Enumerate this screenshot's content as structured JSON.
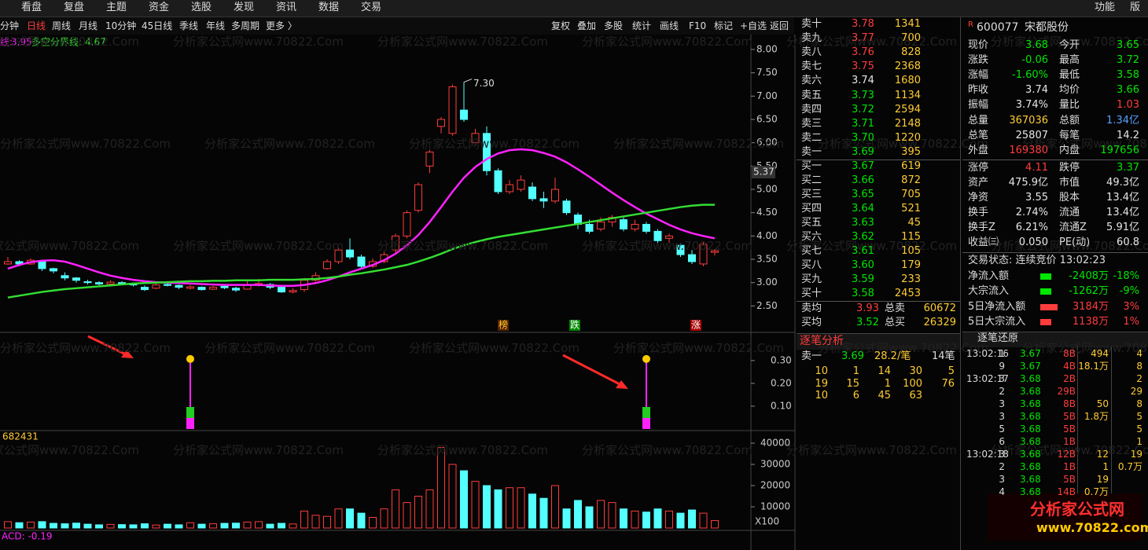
{
  "menu": [
    "看盘",
    "复盘",
    "主题",
    "资金",
    "选股",
    "发现",
    "资讯",
    "数据",
    "交易"
  ],
  "menu_right": [
    "功能",
    "版"
  ],
  "periods": [
    "分钟",
    "日线",
    "周线",
    "月线",
    "10分钟",
    "45日线",
    "季线",
    "年线",
    "多周期",
    "更多 〉"
  ],
  "tools": [
    "复权",
    "叠加",
    "多股",
    "统计",
    "画线",
    "F10",
    "标记",
    "+自选",
    "返回"
  ],
  "chart_data": {
    "type": "candlestick",
    "open": [
      3.4,
      3.45,
      3.4,
      3.45,
      3.3,
      3.15,
      3.1,
      3.02,
      3.0,
      2.97,
      3.0,
      2.97,
      2.9,
      2.88,
      2.96,
      2.94,
      2.88,
      2.9,
      2.86,
      2.92,
      2.88,
      2.86,
      2.95,
      2.96,
      2.9,
      2.8,
      2.85,
      3.05,
      3.3,
      3.45,
      3.7,
      3.55,
      3.35,
      3.45,
      3.7,
      4.0,
      4.55,
      5.5,
      6.35,
      6.2,
      6.7,
      6.0,
      6.2,
      5.4,
      4.95,
      5.0,
      5.05,
      4.8,
      4.75,
      4.75,
      4.45,
      4.25,
      4.15,
      4.3,
      4.35,
      4.15,
      4.25,
      4.1,
      3.95,
      3.8,
      3.6,
      3.4,
      3.65
    ],
    "close": [
      3.45,
      3.4,
      3.48,
      3.3,
      3.25,
      3.1,
      3.05,
      3.0,
      2.97,
      3.01,
      2.98,
      2.95,
      2.85,
      2.95,
      2.94,
      2.9,
      2.91,
      2.85,
      2.9,
      2.89,
      2.84,
      2.95,
      2.98,
      2.9,
      2.8,
      2.83,
      3.05,
      3.15,
      3.45,
      3.7,
      3.55,
      3.35,
      3.45,
      3.6,
      4.0,
      4.5,
      5.1,
      5.8,
      6.5,
      7.2,
      6.5,
      6.2,
      5.4,
      4.95,
      5.1,
      5.2,
      4.8,
      4.75,
      5.0,
      4.5,
      4.25,
      4.1,
      4.3,
      4.4,
      4.15,
      4.25,
      4.1,
      3.9,
      4.0,
      3.6,
      3.45,
      3.82,
      3.68
    ],
    "high": [
      3.55,
      3.48,
      3.52,
      3.46,
      3.32,
      3.22,
      3.12,
      3.06,
      3.03,
      3.05,
      3.03,
      3.0,
      2.94,
      2.98,
      3.0,
      2.96,
      2.95,
      2.92,
      2.93,
      2.96,
      2.91,
      3.05,
      3.08,
      2.99,
      2.92,
      2.88,
      3.1,
      3.22,
      3.5,
      3.75,
      3.95,
      3.6,
      3.52,
      3.66,
      4.05,
      4.55,
      5.15,
      5.85,
      6.55,
      7.25,
      7.3,
      6.3,
      6.35,
      5.45,
      5.2,
      5.3,
      5.15,
      4.95,
      5.25,
      4.8,
      4.5,
      4.35,
      4.4,
      4.45,
      4.4,
      4.35,
      4.3,
      4.15,
      4.05,
      3.85,
      3.7,
      3.88,
      3.72
    ],
    "low": [
      3.38,
      3.35,
      3.38,
      3.25,
      3.2,
      3.05,
      3.0,
      2.96,
      2.94,
      2.95,
      2.95,
      2.92,
      2.82,
      2.86,
      2.92,
      2.86,
      2.85,
      2.83,
      2.84,
      2.86,
      2.8,
      2.85,
      2.92,
      2.86,
      2.78,
      2.77,
      2.8,
      3.02,
      3.28,
      3.4,
      3.5,
      3.3,
      3.32,
      3.42,
      3.65,
      3.95,
      4.5,
      5.35,
      6.2,
      6.15,
      6.45,
      5.95,
      5.3,
      4.9,
      4.9,
      4.95,
      4.75,
      4.6,
      4.7,
      4.45,
      4.15,
      4.05,
      4.1,
      4.2,
      4.1,
      4.1,
      4.05,
      3.85,
      3.85,
      3.55,
      3.4,
      3.35,
      3.58
    ],
    "up_color": "#ff3c3c",
    "down_color": "#54ffff",
    "max_label": "7.30",
    "price_tag": "5.37",
    "series": [
      {
        "name": "线:",
        "color": "#ff22ff",
        "values": [
          3.3,
          3.38,
          3.44,
          3.47,
          3.48,
          3.45,
          3.38,
          3.3,
          3.22,
          3.15,
          3.1,
          3.06,
          3.03,
          3.01,
          3.0,
          2.99,
          2.98,
          2.97,
          2.96,
          2.95,
          2.95,
          2.95,
          2.95,
          2.94,
          2.93,
          2.93,
          2.95,
          2.99,
          3.05,
          3.13,
          3.22,
          3.3,
          3.38,
          3.48,
          3.62,
          3.8,
          4.02,
          4.3,
          4.62,
          4.95,
          5.25,
          5.48,
          5.65,
          5.77,
          5.84,
          5.86,
          5.84,
          5.78,
          5.7,
          5.58,
          5.43,
          5.27,
          5.1,
          4.93,
          4.77,
          4.62,
          4.48,
          4.36,
          4.24,
          4.14,
          4.06,
          4.0,
          3.95
        ]
      },
      {
        "name": "多空分界线:",
        "color": "#33dd33",
        "values": [
          2.68,
          2.72,
          2.76,
          2.8,
          2.83,
          2.86,
          2.88,
          2.9,
          2.92,
          2.94,
          2.96,
          2.98,
          2.99,
          3.0,
          3.01,
          3.02,
          3.03,
          3.03,
          3.04,
          3.04,
          3.05,
          3.05,
          3.05,
          3.06,
          3.06,
          3.06,
          3.07,
          3.08,
          3.1,
          3.13,
          3.17,
          3.2,
          3.24,
          3.28,
          3.33,
          3.38,
          3.45,
          3.53,
          3.62,
          3.72,
          3.8,
          3.87,
          3.93,
          3.98,
          4.02,
          4.06,
          4.1,
          4.14,
          4.18,
          4.22,
          4.26,
          4.3,
          4.34,
          4.38,
          4.42,
          4.46,
          4.5,
          4.54,
          4.58,
          4.62,
          4.65,
          4.67,
          4.67
        ]
      }
    ],
    "ylim": [
      1.95,
      8.32
    ],
    "yticks": [
      {
        "value": 2.5,
        "label": "2.50"
      },
      {
        "value": 3,
        "label": "3.00"
      },
      {
        "value": 3.5,
        "label": "3.50"
      },
      {
        "value": 4,
        "label": "4.00"
      },
      {
        "value": 4.5,
        "label": "4.50"
      },
      {
        "value": 5,
        "label": "5.00"
      },
      {
        "value": 5.5,
        "label": "5.50"
      },
      {
        "value": 6,
        "label": "6.00"
      },
      {
        "value": 6.5,
        "label": "6.50"
      },
      {
        "value": 7,
        "label": "7.00"
      },
      {
        "value": 7.5,
        "label": "7.50"
      },
      {
        "value": 8,
        "label": "8.00"
      }
    ],
    "markers": [
      "榜",
      "跌",
      "涨"
    ],
    "indicator": {
      "values": [
        null,
        null,
        null,
        null,
        null,
        null,
        null,
        null,
        null,
        null,
        null,
        null,
        null,
        null,
        null,
        null,
        0.3,
        null,
        null,
        null,
        null,
        null,
        null,
        null,
        null,
        null,
        null,
        null,
        null,
        null,
        null,
        null,
        null,
        null,
        null,
        null,
        null,
        null,
        null,
        null,
        null,
        null,
        null,
        null,
        null,
        null,
        null,
        null,
        null,
        null,
        null,
        null,
        null,
        null,
        null,
        null,
        0.3,
        null,
        null,
        null,
        null,
        null,
        null
      ],
      "ylim": [
        0,
        0.42
      ],
      "yticks": [
        {
          "value": 0.1,
          "label": "0.10"
        },
        {
          "value": 0.2,
          "label": "0.20"
        },
        {
          "value": 0.3,
          "label": "0.30"
        }
      ],
      "footer": "ACD: -0.19"
    },
    "volume": {
      "label": "682431",
      "unit": "X100",
      "values": [
        3000,
        2500,
        2800,
        3000,
        2200,
        2000,
        2300,
        1800,
        1500,
        1700,
        1600,
        1500,
        2000,
        1400,
        1800,
        1500,
        2500,
        1800,
        2000,
        2200,
        2300,
        2800,
        3000,
        1800,
        2200,
        1900,
        8000,
        6000,
        5500,
        9000,
        9000,
        7000,
        5000,
        9000,
        18000,
        12000,
        15000,
        18000,
        38000,
        30000,
        27000,
        22000,
        20000,
        18000,
        19000,
        19000,
        16000,
        14000,
        20000,
        9000,
        13000,
        10000,
        13000,
        12000,
        9000,
        8000,
        7500,
        9000,
        8000,
        7000,
        8500,
        7000,
        3500
      ],
      "ylim": [
        0,
        45200
      ],
      "yticks": [
        10000,
        20000,
        30000,
        40000
      ]
    }
  },
  "watermark": "分析家公式网www.70822.Com",
  "order_book": {
    "sell": [
      {
        "label": "卖十",
        "price": "3.78",
        "volume": "1341"
      },
      {
        "label": "卖九",
        "price": "3.77",
        "volume": "700"
      },
      {
        "label": "卖八",
        "price": "3.76",
        "volume": "828"
      },
      {
        "label": "卖七",
        "price": "3.75",
        "volume": "2368"
      },
      {
        "label": "卖六",
        "price": "3.74",
        "volume": "1680"
      },
      {
        "label": "卖五",
        "price": "3.73",
        "volume": "1134"
      },
      {
        "label": "卖四",
        "price": "3.72",
        "volume": "2594"
      },
      {
        "label": "卖三",
        "price": "3.71",
        "volume": "2148"
      },
      {
        "label": "卖二",
        "price": "3.70",
        "volume": "1220"
      },
      {
        "label": "卖一",
        "price": "3.69",
        "volume": "395"
      }
    ],
    "buy": [
      {
        "label": "买一",
        "price": "3.67",
        "volume": "619"
      },
      {
        "label": "买二",
        "price": "3.66",
        "volume": "872"
      },
      {
        "label": "买三",
        "price": "3.65",
        "volume": "705"
      },
      {
        "label": "买四",
        "price": "3.64",
        "volume": "521"
      },
      {
        "label": "买五",
        "price": "3.63",
        "volume": "45"
      },
      {
        "label": "买六",
        "price": "3.62",
        "volume": "115"
      },
      {
        "label": "买七",
        "price": "3.61",
        "volume": "105"
      },
      {
        "label": "买八",
        "price": "3.60",
        "volume": "179"
      },
      {
        "label": "买九",
        "price": "3.59",
        "volume": "233"
      },
      {
        "label": "买十",
        "price": "3.58",
        "volume": "2453"
      }
    ],
    "totals": [
      {
        "label": "卖均",
        "price": "3.93",
        "total_label": "总卖",
        "total": "60672"
      },
      {
        "label": "买均",
        "price": "3.52",
        "total_label": "总买",
        "total": "26329"
      }
    ]
  },
  "tick_analysis": {
    "title": "逐笔分析",
    "row": [
      "卖一",
      "3.69",
      "28.2/笔",
      "14笔"
    ],
    "grid": [
      [
        "10",
        "1",
        "14",
        "30",
        "5"
      ],
      [
        "19",
        "15",
        "1",
        "100",
        "76"
      ],
      [
        "10",
        "6",
        "45",
        "63"
      ]
    ]
  },
  "quote": {
    "badge": "R",
    "code": "600077",
    "name": "宋都股份",
    "stats": [
      [
        {
          "l": "现价",
          "v": "3.68",
          "c": "#00e600"
        },
        {
          "l": "今开",
          "v": "3.65",
          "c": "#00e600"
        }
      ],
      [
        {
          "l": "涨跌",
          "v": "-0.06",
          "c": "#00e600"
        },
        {
          "l": "最高",
          "v": "3.72",
          "c": "#00e600"
        }
      ],
      [
        {
          "l": "涨幅",
          "v": "-1.60%",
          "c": "#00e600"
        },
        {
          "l": "最低",
          "v": "3.58",
          "c": "#00e600"
        }
      ],
      [
        {
          "l": "昨收",
          "v": "3.74",
          "c": "#e6e6e6"
        },
        {
          "l": "均价",
          "v": "3.66",
          "c": "#00e600"
        }
      ],
      [
        {
          "l": "振幅",
          "v": "3.74%",
          "c": "#e6e6e6"
        },
        {
          "l": "量比",
          "v": "1.03",
          "c": "#ff3c3c"
        }
      ],
      [
        {
          "l": "总量",
          "v": "367036",
          "c": "#ffcc33"
        },
        {
          "l": "总额",
          "v": "1.34亿",
          "c": "#5aa0ff"
        }
      ],
      [
        {
          "l": "总笔",
          "v": "25807",
          "c": "#e6e6e6"
        },
        {
          "l": "每笔",
          "v": "14.2",
          "c": "#e6e6e6"
        }
      ],
      [
        {
          "l": "外盘",
          "v": "169380",
          "c": "#ff3c3c"
        },
        {
          "l": "内盘",
          "v": "197656",
          "c": "#00e600"
        }
      ]
    ],
    "stats2": [
      [
        {
          "l": "涨停",
          "v": "4.11",
          "c": "#ff3c3c"
        },
        {
          "l": "跌停",
          "v": "3.37",
          "c": "#00e600"
        }
      ],
      [
        {
          "l": "资产",
          "v": "475.9亿",
          "c": "#e6e6e6"
        },
        {
          "l": "市值",
          "v": "49.3亿",
          "c": "#e6e6e6"
        }
      ],
      [
        {
          "l": "净资",
          "v": "3.55",
          "c": "#e6e6e6"
        },
        {
          "l": "股本",
          "v": "13.4亿",
          "c": "#e6e6e6"
        }
      ],
      [
        {
          "l": "换手",
          "v": "2.74%",
          "c": "#e6e6e6"
        },
        {
          "l": "流通",
          "v": "13.4亿",
          "c": "#e6e6e6"
        }
      ],
      [
        {
          "l": "换手Z",
          "v": "6.21%",
          "c": "#e6e6e6"
        },
        {
          "l": "流通Z",
          "v": "5.91亿",
          "c": "#e6e6e6"
        }
      ],
      [
        {
          "l": "收益㈢",
          "v": "0.050",
          "c": "#e6e6e6"
        },
        {
          "l": "PE(动)",
          "v": "60.8",
          "c": "#e6e6e6"
        }
      ]
    ],
    "status": "交易状态: 连续竞价 13:02:23",
    "flows": [
      {
        "l": "净流入额",
        "v": "-2408万",
        "p": "-18%",
        "c": "#00e600"
      },
      {
        "l": "大宗流入",
        "v": "-1262万",
        "p": "-9%",
        "c": "#00e600"
      },
      {
        "l": "5日净流入额",
        "v": "3184万",
        "p": "3%",
        "c": "#ff3c3c"
      },
      {
        "l": "5日大宗流入",
        "v": "1138万",
        "p": "1%",
        "c": "#ff3c3c"
      }
    ]
  },
  "ticks": {
    "title": "逐笔还原",
    "rows": [
      [
        "13:02:16",
        "1",
        "3.67",
        "8B",
        "494",
        "4"
      ],
      [
        null,
        "9",
        "3.67",
        "4B",
        "18.1万",
        "8"
      ],
      [
        "13:02:17",
        "3",
        "3.68",
        "2B",
        null,
        "2"
      ],
      [
        null,
        "2",
        "3.68",
        "29B",
        null,
        "29"
      ],
      [
        null,
        "3",
        "3.68",
        "8B",
        "50",
        "8"
      ],
      [
        null,
        "3",
        "3.68",
        "5B",
        "1.8万",
        "5"
      ],
      [
        null,
        "5",
        "3.68",
        "5B",
        null,
        "5"
      ],
      [
        null,
        "6",
        "3.68",
        "1B",
        null,
        "1"
      ],
      [
        "13:02:18",
        "3",
        "3.68",
        "12B",
        "12",
        "19"
      ],
      [
        null,
        "2",
        "3.68",
        "1B",
        "1",
        "0.7万"
      ],
      [
        null,
        "3",
        "3.68",
        "5B",
        "19",
        null
      ],
      [
        null,
        "4",
        "3.68",
        "14B",
        "0.7万",
        null
      ]
    ]
  },
  "logo": {
    "title": "分析家公式网",
    "url": "www.70822.com"
  }
}
